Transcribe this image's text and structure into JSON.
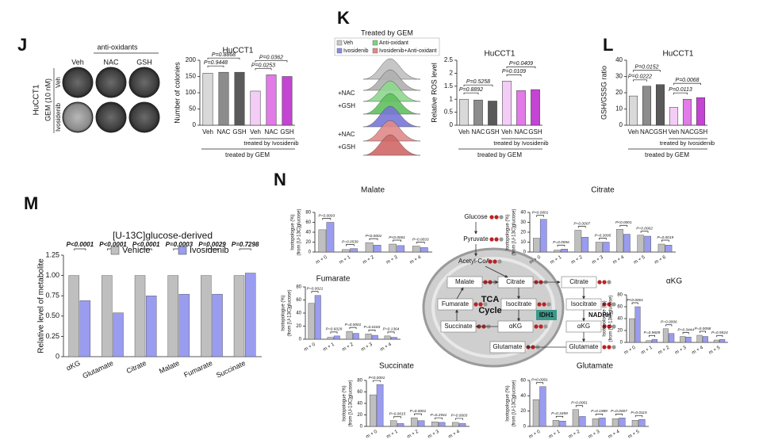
{
  "panel_labels": [
    "J",
    "K",
    "L",
    "M",
    "N"
  ],
  "colony_images": {
    "title": "anti-oxidants",
    "columns": [
      "Veh",
      "NAC",
      "GSH"
    ],
    "cell_line": "HuCCT1",
    "treatment": "GEM (10 nM)",
    "rows": [
      "Veh",
      "Ivosidenib"
    ]
  },
  "flow": {
    "title": "Treated by GEM",
    "legend": [
      "Veh",
      "Anti-oxidant",
      "Ivosidenib",
      "Ivosidenib+Anti-oxidant"
    ],
    "row_labels": [
      "+NAC",
      "+GSH",
      "+NAC",
      "+GSH"
    ]
  },
  "diagram": {
    "nodes": [
      "Glucose",
      "Pyruvate",
      "Acetyl-CoA",
      "Malate",
      "Citrate",
      "Fumarate",
      "Isocitrate",
      "Succinate",
      "αKG",
      "Glutamate",
      "Citrate",
      "Isocitrate",
      "αKG",
      "Glutamate"
    ],
    "enzyme": "IDH1",
    "cofactor": "NADPH",
    "center": [
      "TCA",
      "Cycle"
    ]
  },
  "chart_data": [
    {
      "type": "bar",
      "title": "HuCCT1",
      "y_label": "Number of colonies",
      "categories": [
        "Veh",
        "NAC",
        "GSH",
        "Veh",
        "NAC",
        "GSH"
      ],
      "values": [
        160,
        163,
        163,
        105,
        155,
        150
      ],
      "colors": [
        "#d9d9d9",
        "#8c8c8c",
        "#5a5a5a",
        "#f4cdf7",
        "#e27ae8",
        "#c444d4"
      ],
      "ylim": [
        0,
        200
      ],
      "yticks": [
        0,
        50,
        100,
        150,
        200
      ],
      "p_values": [
        "P=0.8868",
        "P=0.9448",
        "P=0.0362",
        "P=0.0253"
      ],
      "group_labels": [
        "treated by Ivosidenib",
        "treated by GEM"
      ]
    },
    {
      "type": "bar",
      "title": "HuCCT1",
      "y_label": "Relative ROS level",
      "categories": [
        "Veh",
        "NAC",
        "GSH",
        "Veh",
        "NAC",
        "GSH"
      ],
      "values": [
        1.0,
        0.97,
        0.93,
        1.7,
        1.33,
        1.37
      ],
      "colors": [
        "#d9d9d9",
        "#8c8c8c",
        "#5a5a5a",
        "#f4cdf7",
        "#e27ae8",
        "#c444d4"
      ],
      "ylim": [
        0,
        2.5
      ],
      "yticks": [
        0,
        0.5,
        1,
        1.5,
        2,
        2.5
      ],
      "p_values": [
        "P=0.5258",
        "P=0.8892",
        "P=0.0409",
        "P=0.0109"
      ],
      "group_labels": [
        "treated by Ivosidenib",
        "treated by GEM"
      ]
    },
    {
      "type": "bar",
      "title": "HuCCT1",
      "y_label": "GSH/GSSG ratio",
      "categories": [
        "Veh",
        "NAC",
        "GSH",
        "Veh",
        "NAC",
        "GSH"
      ],
      "values": [
        18,
        24,
        25,
        11,
        16,
        17
      ],
      "colors": [
        "#d9d9d9",
        "#8c8c8c",
        "#5a5a5a",
        "#f4cdf7",
        "#e27ae8",
        "#c444d4"
      ],
      "ylim": [
        0,
        40
      ],
      "yticks": [
        0,
        10,
        20,
        30,
        40
      ],
      "p_values": [
        "P=0.0152",
        "P=0.0222",
        "P=0.0068",
        "P=0.0113"
      ],
      "group_labels": [
        "treated by Ivosidenib",
        "treated by GEM"
      ]
    },
    {
      "type": "grouped_bar",
      "title": "[U-13C]glucose-derived",
      "y_label": [
        "Relative level of metabolite"
      ],
      "categories": [
        "αKG",
        "Glutamate",
        "Citrate",
        "Malate",
        "Fumarate",
        "Succinate"
      ],
      "series": [
        {
          "name": "Vehicle",
          "color": "#bfbfbf",
          "values": [
            1.0,
            1.0,
            1.0,
            1.0,
            1.0,
            1.0
          ]
        },
        {
          "name": "Ivosidenib",
          "color": "#9a9cf0",
          "values": [
            0.69,
            0.54,
            0.75,
            0.77,
            0.77,
            1.03
          ]
        }
      ],
      "ylim": [
        0,
        1.25
      ],
      "yticks": [
        0,
        {
          "value": 0.25,
          "label": "0.25"
        },
        {
          "value": 0.5,
          "label": "0.50"
        },
        {
          "value": 0.75,
          "label": "0.75"
        },
        {
          "value": 1,
          "label": "1.00"
        },
        {
          "value": 1.25,
          "label": "1.25"
        }
      ],
      "p_values": [
        "P<0.0001",
        "P<0.0001",
        "P<0.0001",
        "P=0.0003",
        "P=0.0029",
        "P=0.7298"
      ]
    },
    {
      "type": "grouped_bar",
      "title": "Malate",
      "y_label": [
        "Isotopologue (%)",
        "(from [U-13C]glucose)"
      ],
      "categories": [
        "m + 0",
        "m + 1",
        "m + 2",
        "m + 3",
        "m + 4"
      ],
      "series": [
        {
          "color": "#bfbfbf",
          "values": [
            45,
            5,
            19,
            16,
            12
          ]
        },
        {
          "color": "#9a9cf0",
          "values": [
            60,
            7,
            14,
            13,
            9
          ]
        }
      ],
      "ylim": [
        0,
        80
      ],
      "yticks": [
        0,
        20,
        40,
        60,
        80
      ],
      "p_values": [
        "P=0.0003",
        "P=0.0539",
        "P<0.0001",
        "P<0.0001",
        "P=0.0033"
      ]
    },
    {
      "type": "grouped_bar",
      "title": "Citrate",
      "y_label": [
        "Isotopologue (%)",
        "(from [U-13C]glucose)"
      ],
      "categories": [
        "m + 0",
        "m + 1",
        "m + 2",
        "m + 3",
        "m + 4",
        "m + 5",
        "m + 6"
      ],
      "series": [
        {
          "color": "#bfbfbf",
          "values": [
            14,
            2,
            22,
            10,
            23,
            17,
            8
          ]
        },
        {
          "color": "#9a9cf0",
          "values": [
            33,
            3,
            15,
            10,
            18,
            16,
            7
          ]
        }
      ],
      "ylim": [
        0,
        40
      ],
      "yticks": [
        0,
        10,
        20,
        30,
        40
      ],
      "p_values": [
        "P<0.0001",
        "P=0.0556",
        "P=0.0007",
        "P=0.3095",
        "P<0.0001",
        "P=0.0002",
        "P=0.0019"
      ]
    },
    {
      "type": "grouped_bar",
      "title": "Fumarate",
      "y_label": [
        "Isotopologue (%)",
        "(from [U-13C]glucose)"
      ],
      "categories": [
        "m + 0",
        "m + 1",
        "m + 2",
        "m + 3",
        "m + 4"
      ],
      "series": [
        {
          "color": "#bfbfbf",
          "values": [
            55,
            3,
            12,
            8,
            5
          ]
        },
        {
          "color": "#9a9cf0",
          "values": [
            67,
            5,
            9,
            6,
            3
          ]
        }
      ],
      "ylim": [
        0,
        80
      ],
      "yticks": [
        0,
        20,
        40,
        60,
        80
      ],
      "p_values": [
        "P=0.0021",
        "P=0.6029",
        "P=0.0001",
        "P=0.0183",
        "P=0.1364"
      ]
    },
    {
      "type": "grouped_bar",
      "title": "αKG",
      "y_label": [
        "Isotopologue (%)",
        "(from [U-13C]glucose)"
      ],
      "categories": [
        "m + 0",
        "m + 1",
        "m + 2",
        "m + 3",
        "m + 4",
        "m + 5"
      ],
      "series": [
        {
          "color": "#bfbfbf",
          "values": [
            40,
            3,
            23,
            10,
            12,
            4
          ]
        },
        {
          "color": "#9a9cf0",
          "values": [
            60,
            5,
            15,
            9,
            10,
            5
          ]
        }
      ],
      "ylim": [
        0,
        80
      ],
      "yticks": [
        0,
        20,
        40,
        60,
        80
      ],
      "p_values": [
        "P<0.0001",
        "P=0.9609",
        "P=0.0006",
        "P=0.3444",
        "P=0.0058",
        "P=0.5524"
      ]
    },
    {
      "type": "grouped_bar",
      "title": "Succinate",
      "y_label": [
        "Isotopologue (%)",
        "(from [U-13C]glucose)"
      ],
      "categories": [
        "m + 0",
        "m + 1",
        "m + 2",
        "m + 3",
        "m + 4"
      ],
      "series": [
        {
          "color": "#bfbfbf",
          "values": [
            55,
            10,
            15,
            8,
            7
          ]
        },
        {
          "color": "#9a9cf0",
          "values": [
            73,
            5,
            10,
            7,
            5
          ]
        }
      ],
      "ylim": [
        0,
        80
      ],
      "yticks": [
        0,
        20,
        40,
        60,
        80
      ],
      "p_values": [
        "P<0.0001",
        "P=0.0015",
        "P=0.0001",
        "P=0.2941",
        "P=0.0003"
      ]
    },
    {
      "type": "grouped_bar",
      "title": "Glutamate",
      "y_label": [
        "Isotopologue (%)",
        "(from [U-13C]glucose)"
      ],
      "categories": [
        "m + 0",
        "m + 1",
        "m + 2",
        "m + 3",
        "m + 4",
        "m + 5"
      ],
      "series": [
        {
          "color": "#bfbfbf",
          "values": [
            35,
            8,
            22,
            10,
            10,
            8
          ]
        },
        {
          "color": "#9a9cf0",
          "values": [
            52,
            7,
            13,
            11,
            11,
            9
          ]
        }
      ],
      "ylim": [
        0,
        60
      ],
      "yticks": [
        0,
        20,
        40,
        60
      ],
      "p_values": [
        "P<0.0001",
        "P=0.3459",
        "P=0.0001",
        "P=0.1989",
        "P=0.0007",
        "P=0.0115"
      ]
    }
  ]
}
